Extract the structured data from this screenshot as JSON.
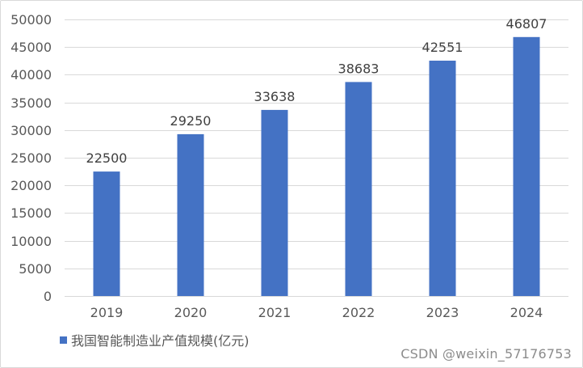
{
  "chart_data": {
    "type": "bar",
    "categories": [
      "2019",
      "2020",
      "2021",
      "2022",
      "2023",
      "2024"
    ],
    "series": [
      {
        "name": "我国智能制造业产值规模(亿元)",
        "values": [
          22500,
          29250,
          33638,
          38683,
          42551,
          46807
        ],
        "color": "#4472c4"
      }
    ],
    "data_labels": [
      "22500",
      "29250",
      "33638",
      "38683",
      "42551",
      "46807"
    ],
    "ylim": [
      0,
      50000
    ],
    "y_ticks": [
      0,
      5000,
      10000,
      15000,
      20000,
      25000,
      30000,
      35000,
      40000,
      45000,
      50000
    ],
    "y_tick_labels": [
      "0",
      "5000",
      "10000",
      "15000",
      "20000",
      "25000",
      "30000",
      "35000",
      "40000",
      "45000",
      "50000"
    ],
    "grid": true,
    "legend_position": "bottom-left",
    "title": "",
    "xlabel": "",
    "ylabel": ""
  },
  "watermark": "CSDN @weixin_57176753",
  "colors": {
    "bar": "#4472c4",
    "grid": "#d9d9d9",
    "axis": "#d9d9d9",
    "text": "#595959"
  }
}
